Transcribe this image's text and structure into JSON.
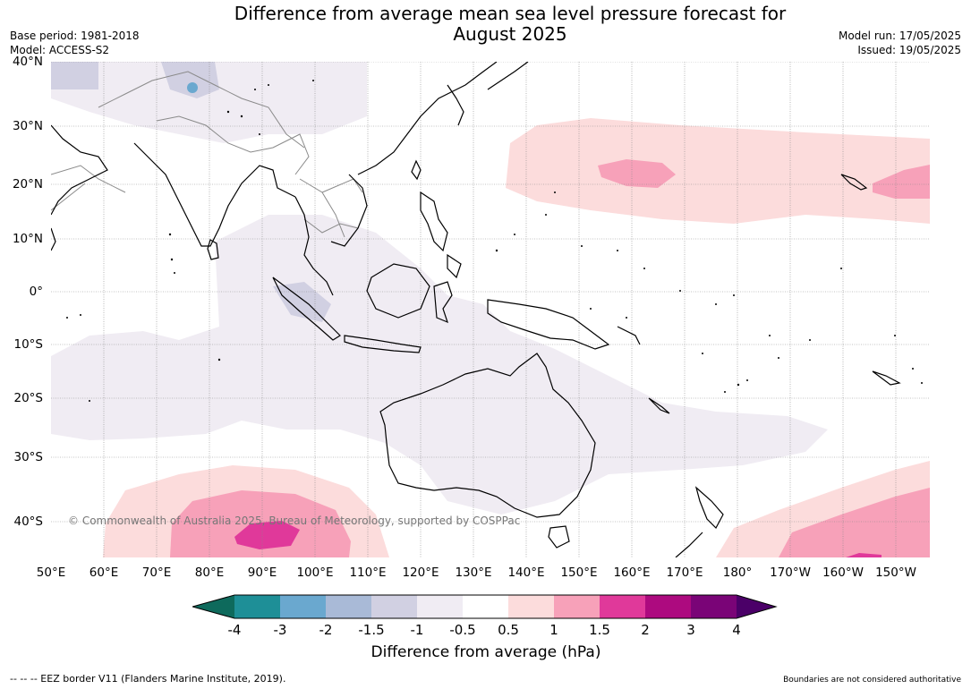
{
  "title_line1": "Difference from average mean sea level pressure forecast for",
  "title_line2": "August 2025",
  "base_period": "Base period: 1981-2018",
  "model": "Model: ACCESS-S2",
  "model_run": "Model run: 17/05/2025",
  "issued": "Issued: 19/05/2025",
  "lat_labels": [
    "40°N",
    "30°N",
    "20°N",
    "10°N",
    "0°",
    "10°S",
    "20°S",
    "30°S",
    "40°S"
  ],
  "lon_labels": [
    "50°E",
    "60°E",
    "70°E",
    "80°E",
    "90°E",
    "100°E",
    "110°E",
    "120°E",
    "130°E",
    "140°E",
    "150°E",
    "160°E",
    "170°E",
    "180°",
    "170°W",
    "160°W",
    "150°W"
  ],
  "colorbar": {
    "ticks": [
      "-4",
      "-3",
      "-2",
      "-1.5",
      "-1",
      "-0.5",
      "0.5",
      "1",
      "1.5",
      "2",
      "3",
      "4"
    ],
    "colors": [
      "#0e6a5c",
      "#1e8f97",
      "#6aa8cf",
      "#a9bad7",
      "#d1d0e2",
      "#f0ecf3",
      "#ffffff",
      "#fcdcdc",
      "#f7a1b9",
      "#e0399a",
      "#ad0a7f",
      "#7a0477",
      "#4b0068"
    ],
    "label": "Difference from average (hPa)"
  },
  "eez_note": "-- -- -- EEZ border V11 (Flanders Marine Institute, 2019).",
  "boundaries_note": "Boundaries are not considered authoritative",
  "copyright": "© Commonwealth of Australia 2025, Bureau of Meteorology, supported by COSPPac"
}
